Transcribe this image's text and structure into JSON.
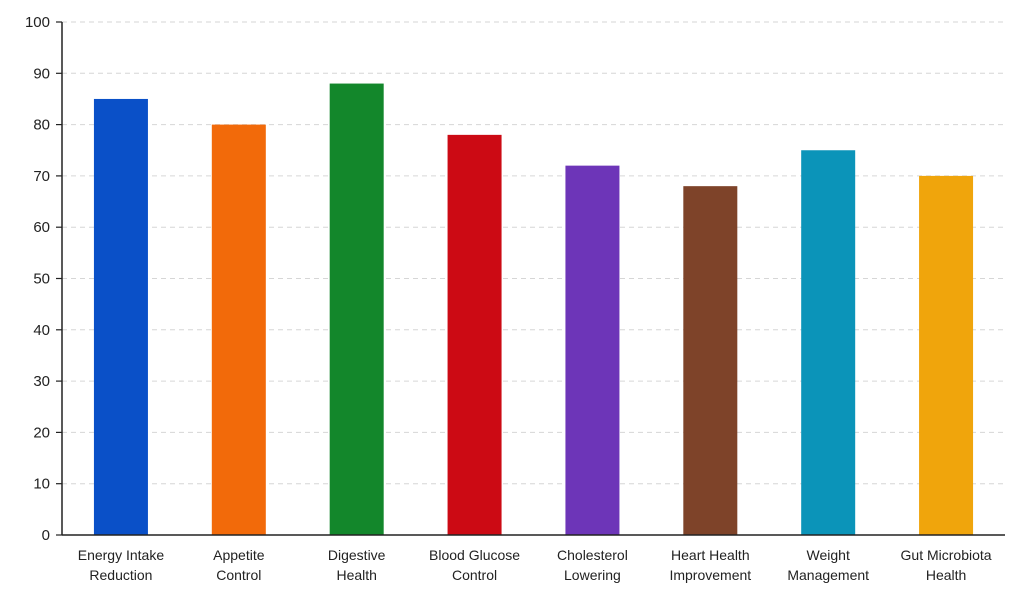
{
  "chart_data": {
    "type": "bar",
    "title": "",
    "xlabel": "",
    "ylabel": "",
    "ylim": [
      0,
      100
    ],
    "yticks": [
      0,
      10,
      20,
      30,
      40,
      50,
      60,
      70,
      80,
      90,
      100
    ],
    "grid": true,
    "categories": [
      [
        "Energy Intake",
        "Reduction"
      ],
      [
        "Appetite",
        "Control"
      ],
      [
        "Digestive",
        "Health"
      ],
      [
        "Blood Glucose",
        "Control"
      ],
      [
        "Cholesterol",
        "Lowering"
      ],
      [
        "Heart Health",
        "Improvement"
      ],
      [
        "Weight",
        "Management"
      ],
      [
        "Gut Microbiota",
        "Health"
      ]
    ],
    "values": [
      85,
      80,
      88,
      78,
      72,
      68,
      75,
      70
    ],
    "colors": [
      "#0a50c8",
      "#f26a0a",
      "#13872b",
      "#cc0a14",
      "#6d35b8",
      "#7e4329",
      "#0b94b9",
      "#f0a50c"
    ]
  }
}
